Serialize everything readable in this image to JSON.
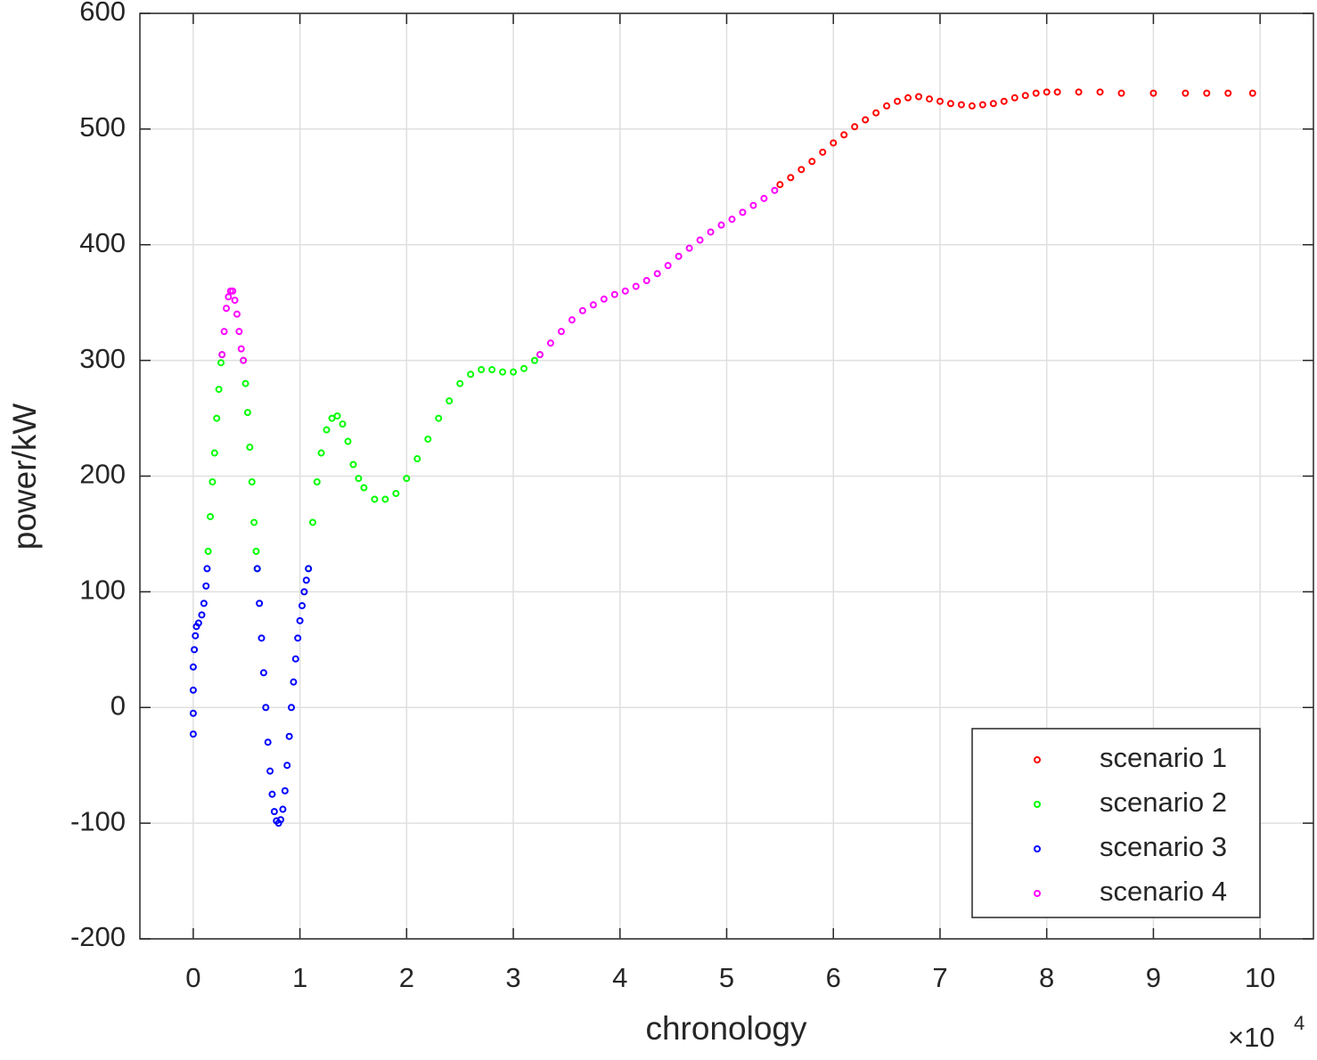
{
  "chart_data": {
    "type": "scatter",
    "x_label": "chronology",
    "y_label": "power/kW",
    "x_multiplier": {
      "base": "×10",
      "exponent": "4"
    },
    "xlim": [
      -0.5,
      10.5
    ],
    "xticks": [
      0,
      1,
      2,
      3,
      4,
      5,
      6,
      7,
      8,
      9,
      10
    ],
    "ylim": [
      -200,
      600
    ],
    "yticks": [
      -200,
      -100,
      0,
      100,
      200,
      300,
      400,
      500,
      600
    ],
    "grid": true,
    "legend_location": "southeast",
    "series": [
      {
        "name": "scenario 1",
        "color": "#ff0000",
        "x": [
          5.5,
          5.6,
          5.7,
          5.8,
          5.9,
          6.0,
          6.1,
          6.2,
          6.3,
          6.4,
          6.5,
          6.6,
          6.7,
          6.8,
          6.9,
          7.0,
          7.1,
          7.2,
          7.3,
          7.4,
          7.5,
          7.6,
          7.7,
          7.8,
          7.9,
          8.0,
          8.1,
          8.3,
          8.5,
          8.7,
          9.0,
          9.3,
          9.5,
          9.7,
          9.93
        ],
        "values": [
          452,
          458,
          465,
          472,
          480,
          488,
          495,
          502,
          508,
          514,
          520,
          524,
          527,
          528,
          526,
          524,
          522,
          521,
          520,
          521,
          522,
          524,
          527,
          529,
          531,
          532,
          532,
          532,
          532,
          531,
          531,
          531,
          531,
          531,
          531
        ]
      },
      {
        "name": "scenario 2",
        "color": "#00ff00",
        "x": [
          0.14,
          0.16,
          0.18,
          0.2,
          0.22,
          0.24,
          0.26,
          0.27,
          0.47,
          0.49,
          0.51,
          0.53,
          0.55,
          0.57,
          0.59,
          0.6,
          1.08,
          1.12,
          1.16,
          1.2,
          1.25,
          1.3,
          1.35,
          1.4,
          1.45,
          1.5,
          1.55,
          1.6,
          1.7,
          1.8,
          1.9,
          2.0,
          2.1,
          2.2,
          2.3,
          2.4,
          2.5,
          2.6,
          2.7,
          2.8,
          2.9,
          3.0,
          3.1,
          3.2,
          3.25
        ],
        "values": [
          135,
          165,
          195,
          220,
          250,
          275,
          298,
          305,
          300,
          280,
          255,
          225,
          195,
          160,
          135,
          120,
          120,
          160,
          195,
          220,
          240,
          250,
          252,
          245,
          230,
          210,
          198,
          190,
          180,
          180,
          185,
          198,
          215,
          232,
          250,
          265,
          280,
          288,
          292,
          292,
          290,
          290,
          293,
          300,
          305
        ]
      },
      {
        "name": "scenario 3",
        "color": "#0000ff",
        "x": [
          0,
          0,
          0,
          0,
          0.01,
          0.02,
          0.03,
          0.05,
          0.08,
          0.1,
          0.12,
          0.13,
          0.6,
          0.62,
          0.64,
          0.66,
          0.68,
          0.7,
          0.72,
          0.74,
          0.76,
          0.78,
          0.8,
          0.82,
          0.84,
          0.86,
          0.88,
          0.9,
          0.92,
          0.94,
          0.96,
          0.98,
          1.0,
          1.02,
          1.04,
          1.06,
          1.08
        ],
        "values": [
          -23,
          -5,
          15,
          35,
          50,
          62,
          70,
          73,
          80,
          90,
          105,
          120,
          120,
          90,
          60,
          30,
          0,
          -30,
          -55,
          -75,
          -90,
          -98,
          -100,
          -97,
          -88,
          -72,
          -50,
          -25,
          0,
          22,
          42,
          60,
          75,
          88,
          100,
          110,
          120
        ]
      },
      {
        "name": "scenario 4",
        "color": "#ff00ff",
        "x": [
          0.27,
          0.29,
          0.31,
          0.33,
          0.35,
          0.37,
          0.39,
          0.41,
          0.43,
          0.45,
          0.47,
          3.25,
          3.35,
          3.45,
          3.55,
          3.65,
          3.75,
          3.85,
          3.95,
          4.05,
          4.15,
          4.25,
          4.35,
          4.45,
          4.55,
          4.65,
          4.75,
          4.85,
          4.95,
          5.05,
          5.15,
          5.25,
          5.35,
          5.45
        ],
        "values": [
          305,
          325,
          345,
          355,
          360,
          360,
          352,
          340,
          325,
          310,
          300,
          305,
          315,
          325,
          335,
          343,
          348,
          353,
          357,
          360,
          364,
          369,
          375,
          382,
          390,
          397,
          404,
          411,
          417,
          422,
          428,
          434,
          440,
          447
        ]
      }
    ]
  }
}
